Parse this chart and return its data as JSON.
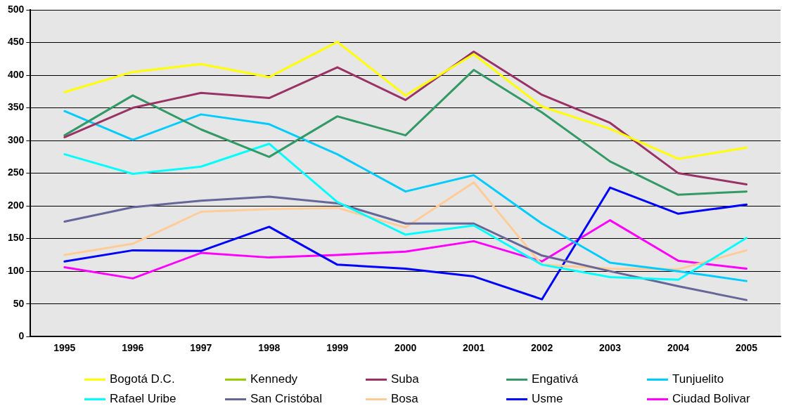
{
  "chart_data": {
    "type": "line",
    "categories": [
      "1995",
      "1996",
      "1997",
      "1998",
      "1999",
      "2000",
      "2001",
      "2002",
      "2003",
      "2004",
      "2005"
    ],
    "ylim": [
      0,
      500
    ],
    "yticks": [
      0,
      50,
      100,
      150,
      200,
      250,
      300,
      350,
      400,
      450,
      500
    ],
    "grid": "y",
    "legend": "bottom",
    "marker": "none",
    "line_style": "solid",
    "series": [
      {
        "name": "Bogotá D.C.",
        "color": "#ffff00",
        "values": [
          374,
          405,
          417,
          397,
          451,
          369,
          432,
          352,
          318,
          272,
          289
        ]
      },
      {
        "name": "Kennedy",
        "color": "#99cc00",
        "values": [
          null,
          null,
          null,
          null,
          null,
          null,
          null,
          null,
          null,
          null,
          null
        ]
      },
      {
        "name": "Suba",
        "color": "#993366",
        "values": [
          305,
          350,
          373,
          365,
          412,
          362,
          436,
          370,
          327,
          250,
          233
        ]
      },
      {
        "name": "Engativá",
        "color": "#339966",
        "values": [
          308,
          369,
          317,
          275,
          337,
          308,
          408,
          343,
          268,
          217,
          222
        ]
      },
      {
        "name": "Tunjuelito",
        "color": "#00ccff",
        "values": [
          345,
          301,
          340,
          325,
          279,
          222,
          247,
          173,
          113,
          100,
          85
        ]
      },
      {
        "name": "Rafael Uribe",
        "color": "#00ffff",
        "values": [
          279,
          249,
          260,
          295,
          206,
          156,
          170,
          110,
          91,
          87,
          151
        ]
      },
      {
        "name": "San Cristóbal",
        "color": "#666699",
        "values": [
          176,
          198,
          208,
          214,
          204,
          173,
          173,
          124,
          100,
          77,
          56
        ]
      },
      {
        "name": "Bosa",
        "color": "#ffcc99",
        "values": [
          125,
          142,
          191,
          195,
          197,
          167,
          236,
          110,
          104,
          103,
          132
        ]
      },
      {
        "name": "Usme",
        "color": "#0000ff",
        "values": [
          115,
          132,
          131,
          168,
          110,
          104,
          92,
          57,
          228,
          188,
          202
        ]
      },
      {
        "name": "Ciudad Bolivar",
        "color": "#ff00ff",
        "values": [
          106,
          89,
          128,
          121,
          125,
          130,
          146,
          115,
          178,
          116,
          104
        ]
      }
    ]
  }
}
